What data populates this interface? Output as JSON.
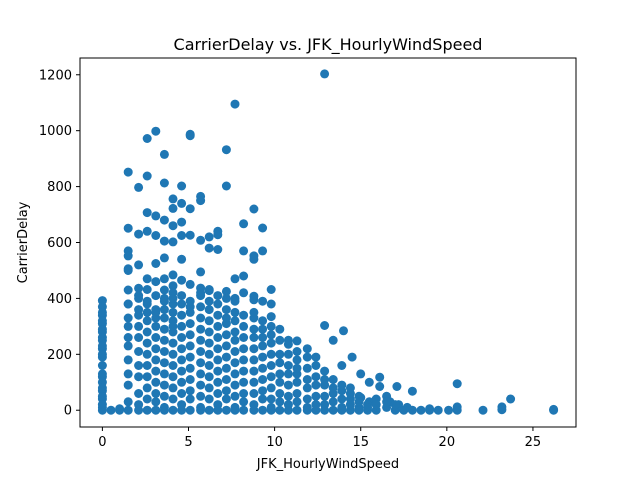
{
  "chart_data": {
    "type": "scatter",
    "title": "CarrierDelay vs. JFK_HourlyWindSpeed",
    "xlabel": "JFK_HourlyWindSpeed",
    "ylabel": "CarrierDelay",
    "xlim": [
      -1.3,
      27.5
    ],
    "ylim": [
      -60,
      1260
    ],
    "xticks": [
      0,
      5,
      10,
      15,
      20,
      25
    ],
    "yticks": [
      0,
      200,
      400,
      600,
      800,
      1000,
      1200
    ],
    "grid": false,
    "legend": "none",
    "color": "#1f77b4",
    "points": [
      [
        12.9,
        1203
      ],
      [
        7.7,
        1095
      ],
      [
        3.1,
        998
      ],
      [
        5.1,
        987
      ],
      [
        5.1,
        982
      ],
      [
        2.6,
        972
      ],
      [
        3.6,
        915
      ],
      [
        7.2,
        932
      ],
      [
        1.5,
        852
      ],
      [
        2.6,
        838
      ],
      [
        2.1,
        797
      ],
      [
        3.6,
        813
      ],
      [
        4.6,
        802
      ],
      [
        7.2,
        802
      ],
      [
        4.1,
        756
      ],
      [
        4.6,
        740
      ],
      [
        5.7,
        765
      ],
      [
        5.7,
        750
      ],
      [
        5.1,
        721
      ],
      [
        4.1,
        722
      ],
      [
        8.8,
        720
      ],
      [
        2.6,
        707
      ],
      [
        3.1,
        695
      ],
      [
        3.6,
        680
      ],
      [
        4.1,
        660
      ],
      [
        4.6,
        673
      ],
      [
        8.2,
        667
      ],
      [
        9.3,
        652
      ],
      [
        1.5,
        651
      ],
      [
        2.1,
        630
      ],
      [
        2.6,
        640
      ],
      [
        3.1,
        625
      ],
      [
        3.6,
        605
      ],
      [
        4.1,
        602
      ],
      [
        4.6,
        625
      ],
      [
        5.1,
        626
      ],
      [
        5.7,
        608
      ],
      [
        6.2,
        620
      ],
      [
        6.7,
        640
      ],
      [
        6.7,
        628
      ],
      [
        6.2,
        580
      ],
      [
        6.7,
        575
      ],
      [
        8.2,
        570
      ],
      [
        9.3,
        570
      ],
      [
        8.8,
        552
      ],
      [
        8.8,
        540
      ],
      [
        1.5,
        570
      ],
      [
        1.5,
        552
      ],
      [
        2.1,
        520
      ],
      [
        3.1,
        525
      ],
      [
        3.6,
        545
      ],
      [
        4.6,
        540
      ],
      [
        5.7,
        495
      ],
      [
        4.1,
        484
      ],
      [
        1.5,
        506
      ],
      [
        1.5,
        500
      ],
      [
        8.2,
        480
      ],
      [
        7.7,
        470
      ],
      [
        2.6,
        470
      ],
      [
        3.1,
        460
      ],
      [
        4.6,
        465
      ],
      [
        9.8,
        432
      ],
      [
        8.8,
        408
      ],
      [
        0.0,
        392
      ],
      [
        1.5,
        430
      ],
      [
        2.1,
        436
      ],
      [
        2.6,
        432
      ],
      [
        3.6,
        430
      ],
      [
        4.1,
        445
      ],
      [
        5.7,
        437
      ],
      [
        6.2,
        428
      ],
      [
        7.2,
        425
      ],
      [
        8.2,
        420
      ],
      [
        7.7,
        400
      ],
      [
        9.3,
        390
      ],
      [
        9.8,
        335
      ],
      [
        12.9,
        303
      ],
      [
        13.4,
        250
      ],
      [
        14.0,
        284
      ],
      [
        14.5,
        190
      ],
      [
        13.9,
        160
      ],
      [
        11.3,
        248
      ],
      [
        10.8,
        236
      ],
      [
        11.9,
        220
      ],
      [
        12.4,
        190
      ],
      [
        15.0,
        130
      ],
      [
        15.5,
        100
      ],
      [
        16.1,
        118
      ],
      [
        16.1,
        85
      ],
      [
        17.1,
        85
      ],
      [
        18.0,
        68
      ],
      [
        16.5,
        50
      ],
      [
        15.0,
        45
      ],
      [
        15.5,
        30
      ],
      [
        16.7,
        30
      ],
      [
        17.2,
        20
      ],
      [
        17.7,
        10
      ],
      [
        18.0,
        0
      ],
      [
        18.5,
        0
      ],
      [
        19.0,
        0
      ],
      [
        19.5,
        0
      ],
      [
        20.1,
        0
      ],
      [
        20.6,
        95
      ],
      [
        20.6,
        12
      ],
      [
        22.1,
        0
      ],
      [
        23.2,
        12
      ],
      [
        23.2,
        2
      ],
      [
        23.7,
        40
      ],
      [
        26.2,
        3
      ],
      [
        26.2,
        0
      ],
      [
        0.0,
        370
      ],
      [
        0.0,
        340
      ],
      [
        0.0,
        310
      ],
      [
        0.0,
        280
      ],
      [
        0.0,
        250
      ],
      [
        0.0,
        220
      ],
      [
        0.0,
        190
      ],
      [
        0.0,
        160
      ],
      [
        0.0,
        130
      ],
      [
        0.0,
        100
      ],
      [
        0.0,
        70
      ],
      [
        0.0,
        40
      ],
      [
        0.0,
        10
      ],
      [
        0.0,
        0
      ],
      [
        1.0,
        0
      ],
      [
        1.5,
        0
      ],
      [
        1.5,
        90
      ],
      [
        1.5,
        180
      ],
      [
        1.5,
        260
      ],
      [
        1.5,
        330
      ],
      [
        1.5,
        380
      ],
      [
        2.1,
        20
      ],
      [
        2.1,
        120
      ],
      [
        2.1,
        210
      ],
      [
        2.1,
        300
      ],
      [
        2.1,
        360
      ],
      [
        2.1,
        410
      ],
      [
        2.6,
        0
      ],
      [
        2.6,
        80
      ],
      [
        2.6,
        160
      ],
      [
        2.6,
        240
      ],
      [
        2.6,
        320
      ],
      [
        2.6,
        380
      ],
      [
        3.1,
        0
      ],
      [
        3.1,
        60
      ],
      [
        3.1,
        140
      ],
      [
        3.1,
        220
      ],
      [
        3.1,
        300
      ],
      [
        3.1,
        360
      ],
      [
        3.6,
        10
      ],
      [
        3.6,
        90
      ],
      [
        3.6,
        170
      ],
      [
        3.6,
        250
      ],
      [
        3.6,
        330
      ],
      [
        3.6,
        390
      ],
      [
        4.1,
        0
      ],
      [
        4.1,
        80
      ],
      [
        4.1,
        160
      ],
      [
        4.1,
        240
      ],
      [
        4.1,
        320
      ],
      [
        4.1,
        380
      ],
      [
        4.6,
        20
      ],
      [
        4.6,
        100
      ],
      [
        4.6,
        180
      ],
      [
        4.6,
        260
      ],
      [
        4.6,
        340
      ],
      [
        5.1,
        0
      ],
      [
        5.1,
        70
      ],
      [
        5.1,
        150
      ],
      [
        5.1,
        230
      ],
      [
        5.1,
        310
      ],
      [
        5.1,
        370
      ],
      [
        5.7,
        10
      ],
      [
        5.7,
        90
      ],
      [
        5.7,
        170
      ],
      [
        5.7,
        250
      ],
      [
        5.7,
        330
      ],
      [
        5.7,
        410
      ],
      [
        6.2,
        0
      ],
      [
        6.2,
        80
      ],
      [
        6.2,
        160
      ],
      [
        6.2,
        240
      ],
      [
        6.2,
        320
      ],
      [
        6.2,
        390
      ],
      [
        6.7,
        20
      ],
      [
        6.7,
        100
      ],
      [
        6.7,
        180
      ],
      [
        6.7,
        260
      ],
      [
        6.7,
        340
      ],
      [
        7.2,
        0
      ],
      [
        7.2,
        70
      ],
      [
        7.2,
        150
      ],
      [
        7.2,
        230
      ],
      [
        7.2,
        310
      ],
      [
        7.2,
        360
      ],
      [
        7.7,
        10
      ],
      [
        7.7,
        90
      ],
      [
        7.7,
        170
      ],
      [
        7.7,
        250
      ],
      [
        7.7,
        320
      ],
      [
        7.7,
        390
      ],
      [
        8.2,
        0
      ],
      [
        8.2,
        60
      ],
      [
        8.2,
        140
      ],
      [
        8.2,
        220
      ],
      [
        8.2,
        300
      ],
      [
        8.8,
        20
      ],
      [
        8.8,
        100
      ],
      [
        8.8,
        180
      ],
      [
        8.8,
        260
      ],
      [
        8.8,
        330
      ],
      [
        9.3,
        0
      ],
      [
        9.3,
        70
      ],
      [
        9.3,
        150
      ],
      [
        9.3,
        230
      ],
      [
        9.3,
        290
      ],
      [
        9.8,
        10
      ],
      [
        9.8,
        80
      ],
      [
        9.8,
        160
      ],
      [
        9.8,
        240
      ],
      [
        9.8,
        300
      ],
      [
        10.3,
        0
      ],
      [
        10.3,
        60
      ],
      [
        10.3,
        130
      ],
      [
        10.3,
        200
      ],
      [
        10.3,
        250
      ],
      [
        10.8,
        20
      ],
      [
        10.8,
        90
      ],
      [
        10.8,
        160
      ],
      [
        11.3,
        0
      ],
      [
        11.3,
        60
      ],
      [
        11.3,
        130
      ],
      [
        11.3,
        180
      ],
      [
        11.9,
        10
      ],
      [
        11.9,
        80
      ],
      [
        11.9,
        150
      ],
      [
        12.4,
        0
      ],
      [
        12.4,
        50
      ],
      [
        12.4,
        120
      ],
      [
        12.9,
        20
      ],
      [
        12.9,
        90
      ],
      [
        12.9,
        140
      ],
      [
        13.4,
        0
      ],
      [
        13.4,
        60
      ],
      [
        13.4,
        110
      ],
      [
        13.9,
        10
      ],
      [
        13.9,
        70
      ],
      [
        14.4,
        0
      ],
      [
        14.4,
        40
      ],
      [
        14.4,
        80
      ],
      [
        14.9,
        10
      ],
      [
        14.9,
        50
      ],
      [
        15.4,
        0
      ],
      [
        15.4,
        20
      ],
      [
        15.9,
        0
      ],
      [
        15.9,
        40
      ],
      [
        16.5,
        10
      ],
      [
        17.0,
        0
      ],
      [
        17.5,
        0
      ],
      [
        19.0,
        5
      ],
      [
        20.6,
        0
      ],
      [
        1.5,
        30
      ],
      [
        1.5,
        130
      ],
      [
        1.5,
        230
      ],
      [
        2.1,
        60
      ],
      [
        2.1,
        160
      ],
      [
        2.1,
        260
      ],
      [
        2.6,
        40
      ],
      [
        2.6,
        120
      ],
      [
        2.6,
        200
      ],
      [
        2.6,
        280
      ],
      [
        3.1,
        30
      ],
      [
        3.1,
        100
      ],
      [
        3.1,
        180
      ],
      [
        3.1,
        260
      ],
      [
        3.1,
        330
      ],
      [
        3.6,
        50
      ],
      [
        3.6,
        130
      ],
      [
        3.6,
        210
      ],
      [
        3.6,
        290
      ],
      [
        4.1,
        40
      ],
      [
        4.1,
        120
      ],
      [
        4.1,
        200
      ],
      [
        4.1,
        280
      ],
      [
        4.1,
        350
      ],
      [
        4.6,
        60
      ],
      [
        4.6,
        140
      ],
      [
        4.6,
        220
      ],
      [
        4.6,
        300
      ],
      [
        5.1,
        40
      ],
      [
        5.1,
        110
      ],
      [
        5.1,
        190
      ],
      [
        5.1,
        270
      ],
      [
        5.7,
        50
      ],
      [
        5.7,
        130
      ],
      [
        5.7,
        210
      ],
      [
        5.7,
        290
      ],
      [
        6.2,
        40
      ],
      [
        6.2,
        120
      ],
      [
        6.2,
        200
      ],
      [
        6.2,
        280
      ],
      [
        6.7,
        60
      ],
      [
        6.7,
        140
      ],
      [
        6.7,
        220
      ],
      [
        6.7,
        300
      ],
      [
        7.2,
        40
      ],
      [
        7.2,
        110
      ],
      [
        7.2,
        190
      ],
      [
        7.2,
        270
      ],
      [
        7.7,
        50
      ],
      [
        7.7,
        130
      ],
      [
        7.7,
        210
      ],
      [
        7.7,
        280
      ],
      [
        8.2,
        30
      ],
      [
        8.2,
        100
      ],
      [
        8.2,
        180
      ],
      [
        8.2,
        260
      ],
      [
        8.8,
        60
      ],
      [
        8.8,
        140
      ],
      [
        8.8,
        220
      ],
      [
        8.8,
        290
      ],
      [
        9.3,
        40
      ],
      [
        9.3,
        110
      ],
      [
        9.3,
        190
      ],
      [
        9.3,
        260
      ],
      [
        9.8,
        40
      ],
      [
        9.8,
        120
      ],
      [
        9.8,
        200
      ],
      [
        9.8,
        270
      ],
      [
        10.3,
        30
      ],
      [
        10.3,
        100
      ],
      [
        10.3,
        170
      ],
      [
        10.8,
        50
      ],
      [
        10.8,
        130
      ],
      [
        10.8,
        200
      ],
      [
        11.3,
        30
      ],
      [
        11.3,
        100
      ],
      [
        11.3,
        150
      ],
      [
        11.9,
        40
      ],
      [
        11.9,
        110
      ],
      [
        11.9,
        190
      ],
      [
        12.4,
        20
      ],
      [
        12.4,
        90
      ],
      [
        12.4,
        160
      ],
      [
        12.9,
        50
      ],
      [
        12.9,
        110
      ],
      [
        13.4,
        30
      ],
      [
        13.4,
        80
      ],
      [
        13.9,
        40
      ],
      [
        13.9,
        90
      ],
      [
        14.4,
        20
      ],
      [
        14.4,
        60
      ],
      [
        14.9,
        30
      ],
      [
        15.4,
        10
      ],
      [
        15.9,
        20
      ],
      [
        16.5,
        30
      ],
      [
        17.0,
        20
      ],
      [
        1.5,
        380
      ],
      [
        1.5,
        300
      ],
      [
        2.1,
        340
      ],
      [
        2.6,
        350
      ],
      [
        3.1,
        350
      ],
      [
        3.6,
        360
      ],
      [
        4.1,
        300
      ],
      [
        4.6,
        380
      ],
      [
        5.1,
        350
      ],
      [
        5.7,
        370
      ],
      [
        6.2,
        360
      ],
      [
        6.7,
        380
      ],
      [
        7.2,
        330
      ],
      [
        7.7,
        350
      ],
      [
        8.2,
        340
      ],
      [
        8.8,
        350
      ],
      [
        9.3,
        320
      ],
      [
        0.0,
        50
      ],
      [
        0.0,
        20
      ],
      [
        0.0,
        80
      ],
      [
        0.0,
        120
      ],
      [
        0.0,
        200
      ],
      [
        0.0,
        230
      ],
      [
        0.0,
        260
      ],
      [
        0.0,
        290
      ],
      [
        0.0,
        320
      ],
      [
        0.0,
        350
      ],
      [
        0.5,
        0
      ],
      [
        1.0,
        5
      ],
      [
        2.1,
        0
      ],
      [
        3.6,
        0
      ],
      [
        4.6,
        0
      ],
      [
        5.7,
        0
      ],
      [
        6.7,
        0
      ],
      [
        7.7,
        0
      ],
      [
        8.8,
        0
      ],
      [
        9.8,
        0
      ],
      [
        10.8,
        0
      ],
      [
        11.9,
        0
      ],
      [
        12.9,
        0
      ],
      [
        13.9,
        0
      ],
      [
        14.9,
        0
      ],
      [
        3.6,
        470
      ],
      [
        4.1,
        420
      ],
      [
        4.6,
        410
      ],
      [
        5.1,
        390
      ],
      [
        5.7,
        420
      ],
      [
        6.7,
        410
      ],
      [
        7.2,
        400
      ],
      [
        5.1,
        450
      ],
      [
        6.2,
        432
      ],
      [
        2.6,
        390
      ],
      [
        3.1,
        410
      ],
      [
        3.6,
        400
      ],
      [
        2.1,
        400
      ],
      [
        4.1,
        400
      ],
      [
        8.8,
        395
      ],
      [
        9.8,
        380
      ],
      [
        10.3,
        290
      ],
      [
        11.3,
        210
      ],
      [
        10.8,
        250
      ]
    ]
  }
}
